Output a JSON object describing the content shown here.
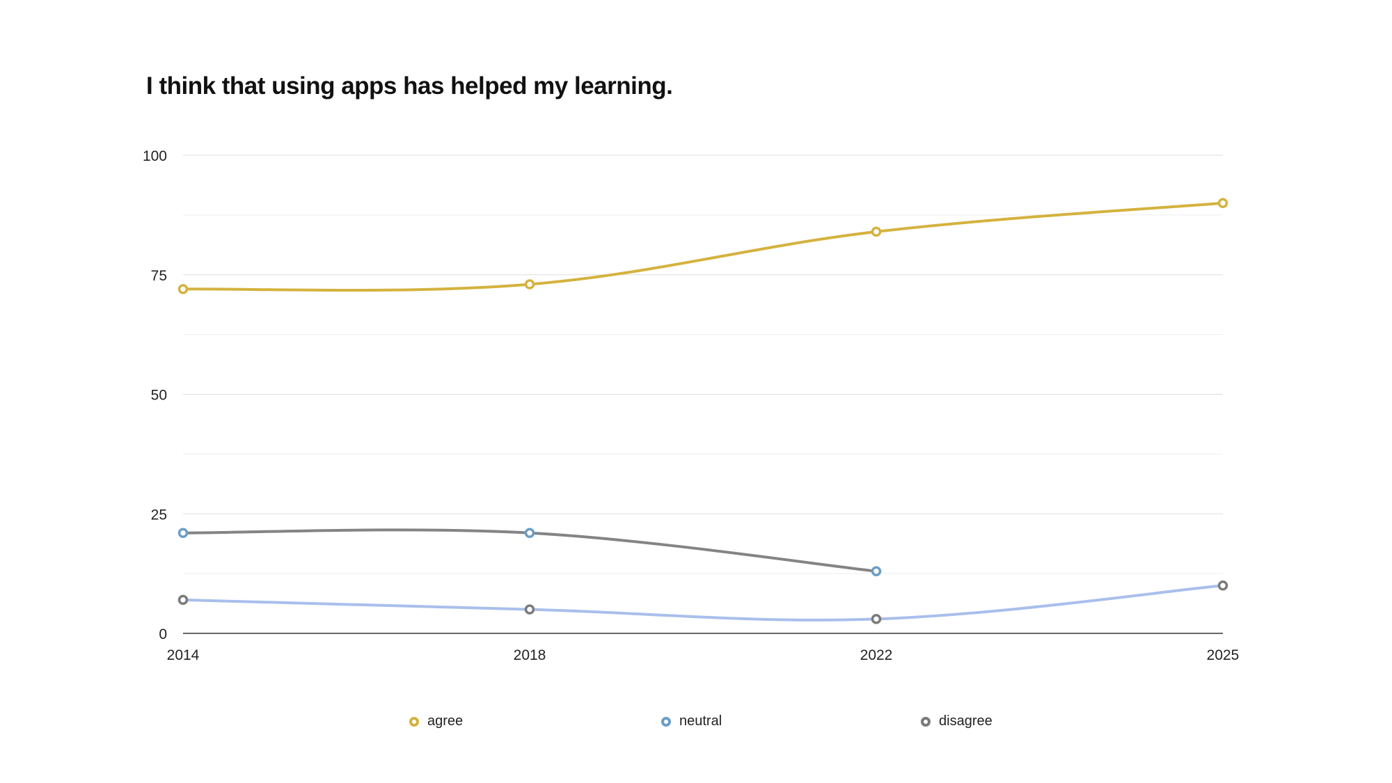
{
  "chart_data": {
    "type": "line",
    "title": "I think that using apps has helped my learning.",
    "xlabel": "",
    "ylabel": "",
    "x": [
      "2014",
      "2018",
      "2022",
      "2025"
    ],
    "ylim": [
      0,
      100
    ],
    "yticks": [
      0,
      25,
      50,
      75,
      100
    ],
    "grid": true,
    "legend_position": "bottom",
    "series": [
      {
        "name": "agree",
        "color": "#D4B23E",
        "values": [
          72,
          73,
          84,
          90
        ]
      },
      {
        "name": "neutral",
        "color": "#6A9EC5",
        "line_color": "#848484",
        "values": [
          21,
          21,
          13,
          null
        ]
      },
      {
        "name": "disagree",
        "color": "#7A7A7A",
        "line_color": "#A9BFEC",
        "values": [
          7,
          5,
          3,
          10
        ]
      }
    ]
  }
}
